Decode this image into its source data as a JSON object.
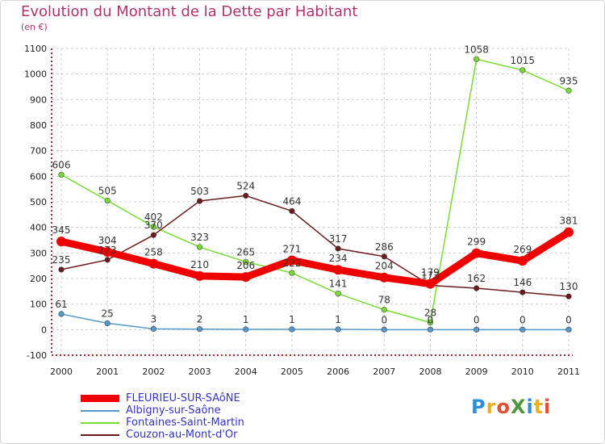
{
  "chart_data": {
    "type": "line",
    "title": "Evolution du Montant de la Dette par Habitant",
    "unit": "(en €)",
    "ylim": [
      -100,
      1100
    ],
    "yticks": [
      -100,
      0,
      100,
      200,
      300,
      400,
      500,
      600,
      700,
      800,
      900,
      1000,
      1100
    ],
    "categories": [
      "2000",
      "2001",
      "2002",
      "2003",
      "2004",
      "2005",
      "2006",
      "2007",
      "2008",
      "2009",
      "2010",
      "2011"
    ],
    "grid": true,
    "legend_position": "bottom-left",
    "series": [
      {
        "name": "FLEURIEU-SUR-SAôNE",
        "color": "#ee0000",
        "values": [
          345,
          304,
          258,
          210,
          206,
          271,
          234,
          204,
          179,
          299,
          269,
          381
        ]
      },
      {
        "name": "Albigny-sur-Saône",
        "color": "#5599cc",
        "values": [
          61,
          25,
          3,
          2,
          1,
          1,
          1,
          0,
          0,
          0,
          0,
          0
        ]
      },
      {
        "name": "Fontaines-Saint-Martin",
        "color": "#77dd33",
        "values": [
          606,
          505,
          402,
          323,
          265,
          222,
          141,
          78,
          28,
          1058,
          1015,
          935
        ]
      },
      {
        "name": "Couzon-au-Mont-d'Or",
        "color": "#6b1a1a",
        "values": [
          235,
          273,
          370,
          503,
          524,
          464,
          317,
          286,
          173,
          162,
          146,
          130
        ]
      }
    ]
  },
  "logo": {
    "text": "ProXiti",
    "letters": [
      {
        "ch": "P",
        "color": "#2a8fd8"
      },
      {
        "ch": "r",
        "color": "#e8b020"
      },
      {
        "ch": "o",
        "color": "#e05030"
      },
      {
        "ch": "X",
        "color": "#4a9a3a"
      },
      {
        "ch": "i",
        "color": "#2a8fd8"
      },
      {
        "ch": "t",
        "color": "#e8b020"
      },
      {
        "ch": "i",
        "color": "#e05030"
      }
    ]
  }
}
